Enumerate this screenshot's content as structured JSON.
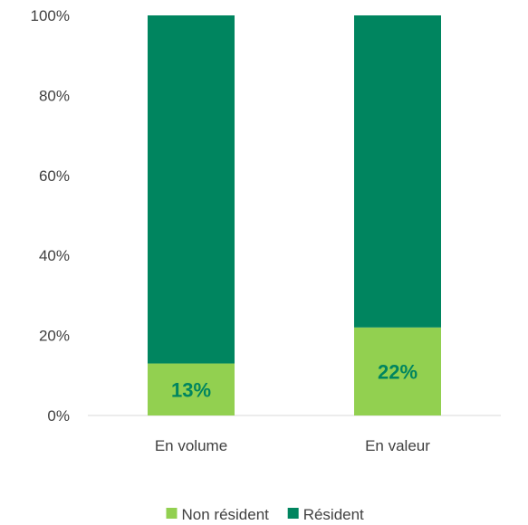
{
  "chart_data": {
    "type": "bar",
    "stacked": true,
    "categories": [
      "En volume",
      "En valeur"
    ],
    "series": [
      {
        "name": "Non résident",
        "values": [
          13,
          22
        ],
        "color": "#92d050"
      },
      {
        "name": "Résident",
        "values": [
          87,
          78
        ],
        "color": "#00855f"
      }
    ],
    "data_labels": [
      "13%",
      "22%"
    ],
    "data_label_color": "#00855f",
    "ylim": [
      0,
      100
    ],
    "yticks": [
      0,
      20,
      40,
      60,
      80,
      100
    ],
    "ytick_labels": [
      "0%",
      "20%",
      "40%",
      "60%",
      "80%",
      "100%"
    ],
    "grid": false,
    "legend_position": "bottom"
  }
}
